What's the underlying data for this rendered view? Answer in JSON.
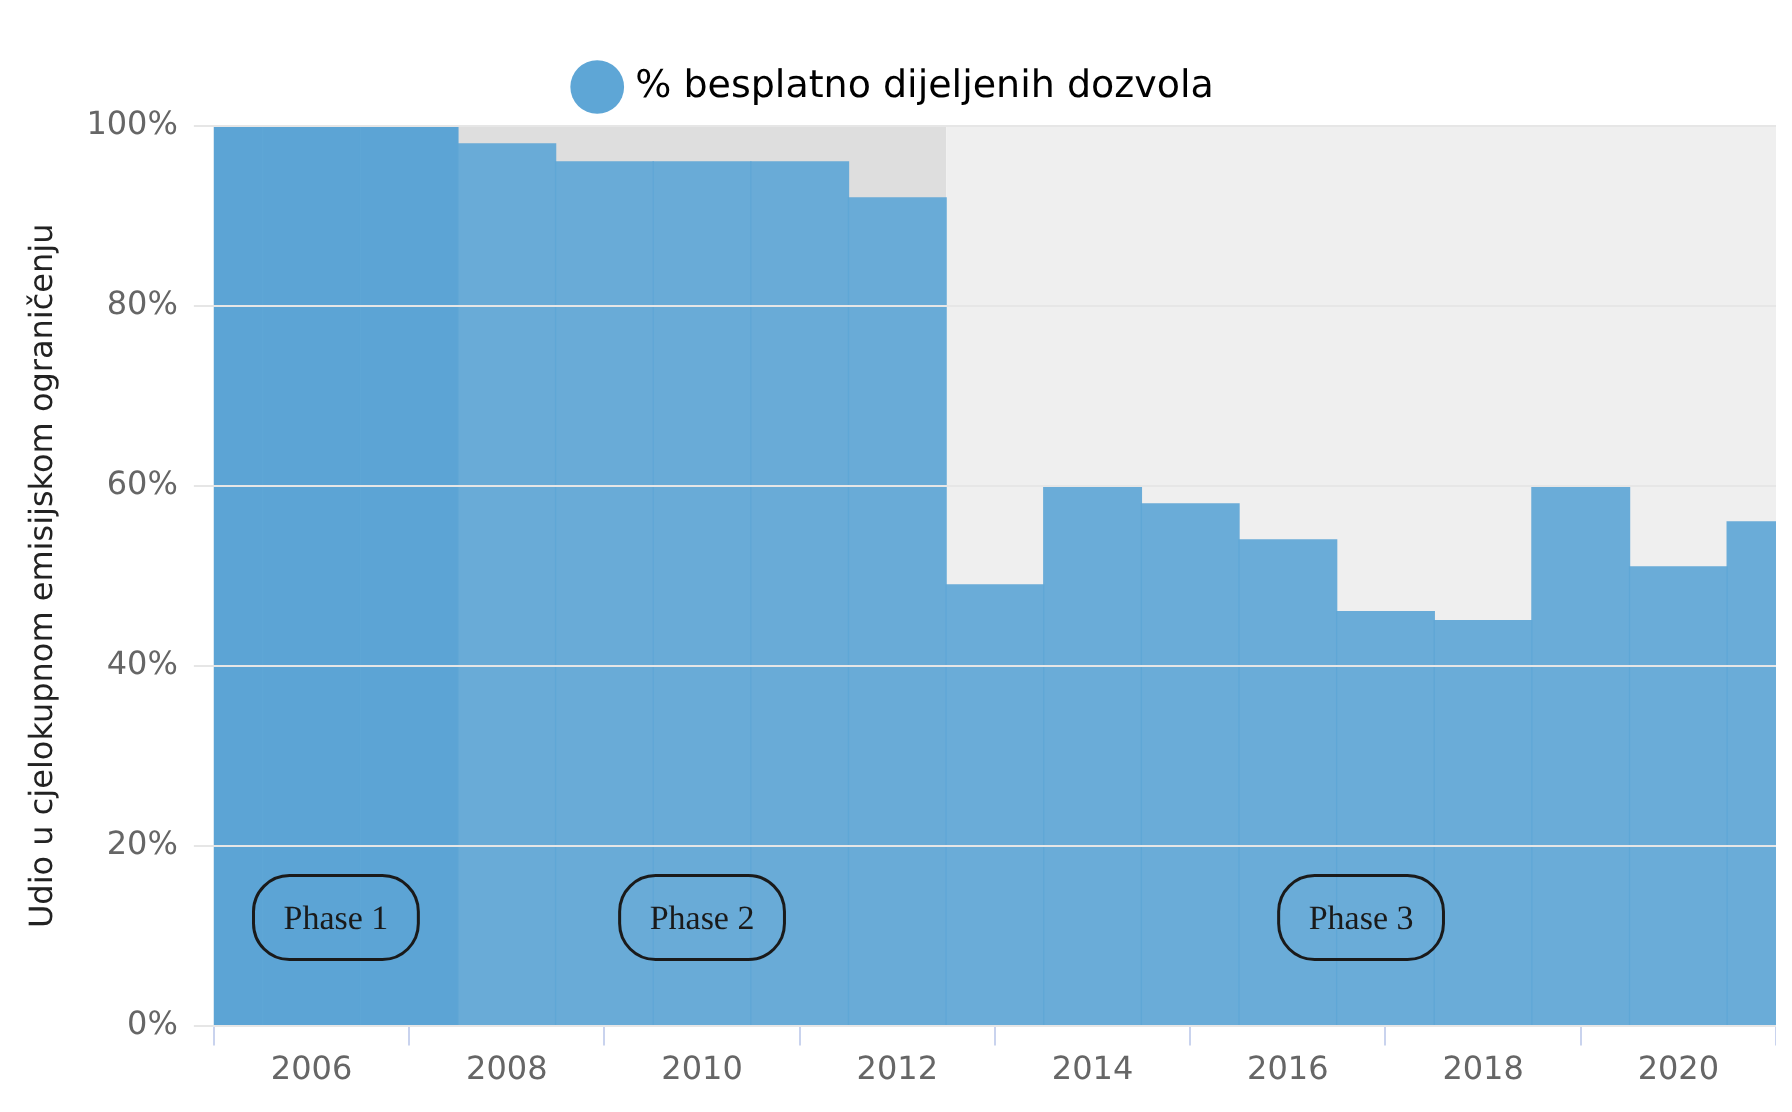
{
  "chart_data": {
    "type": "bar",
    "ylabel": "Udio u cjelokupnom emisijskom ograničenju",
    "x": [
      2005,
      2006,
      2007,
      2008,
      2009,
      2010,
      2011,
      2012,
      2013,
      2014,
      2015,
      2016,
      2017,
      2018,
      2019,
      2020,
      2021
    ],
    "series": [
      {
        "name": "% besplatno dijeljenih dozvola",
        "color": "#5ea6d6",
        "values": [
          100,
          100,
          100,
          98,
          96,
          96,
          96,
          92,
          49,
          60,
          58,
          54,
          46,
          45,
          60,
          51,
          56
        ]
      }
    ],
    "xlim": [
      2005,
      2021
    ],
    "xticks": [
      2006,
      2008,
      2010,
      2012,
      2014,
      2016,
      2018,
      2020
    ],
    "ylim": [
      0,
      100
    ],
    "yticks": [
      {
        "value": 0,
        "label": "0%"
      },
      {
        "value": 20,
        "label": "20%"
      },
      {
        "value": 40,
        "label": "40%"
      },
      {
        "value": 60,
        "label": "60%"
      },
      {
        "value": 80,
        "label": "80%"
      },
      {
        "value": 100,
        "label": "100%"
      }
    ],
    "bands": [
      {
        "axis": "x",
        "from": 2005,
        "to": 2007.5,
        "label": "Phase 1",
        "color": "#3f8cc4"
      },
      {
        "axis": "x",
        "from": 2007.5,
        "to": 2012.5,
        "label": "Phase 2",
        "color": "#dedede"
      },
      {
        "axis": "x",
        "from": 2012.5,
        "to": 2021,
        "label": "Phase 3",
        "color": "#efefef"
      }
    ],
    "grid": "y",
    "legend": "top"
  }
}
